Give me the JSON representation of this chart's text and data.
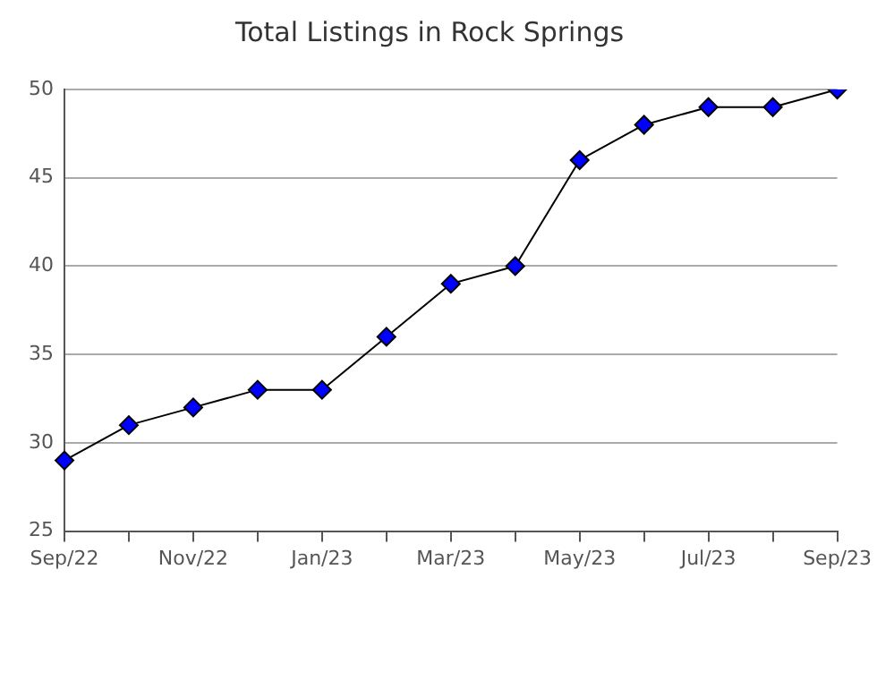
{
  "chart_data": {
    "type": "line",
    "title": "Total Listings in Rock Springs",
    "categories": [
      "Sep/22",
      null,
      "Nov/22",
      null,
      "Jan/23",
      null,
      "Mar/23",
      null,
      "May/23",
      null,
      "Jul/23",
      null,
      "Sep/23"
    ],
    "series": [
      {
        "color": "#0000ff",
        "values": [
          29,
          31,
          32,
          33,
          33,
          36,
          39,
          40,
          46,
          48,
          49,
          49,
          50
        ]
      }
    ],
    "ylim": [
      25,
      50
    ],
    "yticks": [
      25,
      30,
      35,
      40,
      45,
      50
    ],
    "grid": "y",
    "legend": false,
    "marker": "diamond",
    "line_style": "solid"
  }
}
